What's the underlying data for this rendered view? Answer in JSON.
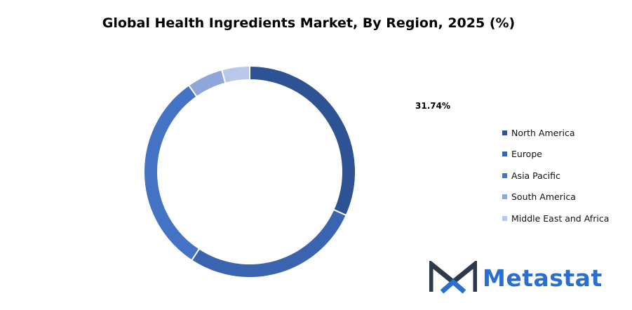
{
  "chart_data": {
    "type": "pie",
    "donut": true,
    "title": "Global Health Ingredients Market, By Region, 2025 (%)",
    "categories": [
      "North America",
      "Europe",
      "Asia Pacific",
      "South America",
      "Middle East and Africa"
    ],
    "values": [
      31.74,
      27.5,
      31.0,
      5.5,
      4.26
    ],
    "colors": [
      "#2e5394",
      "#3a64b0",
      "#4472c4",
      "#8ea6d9",
      "#b9c7e8"
    ],
    "data_labels": [
      "31.74%"
    ],
    "legend_position": "right"
  },
  "brand": {
    "name": "Metastat",
    "mark_color": "#2d3a4b",
    "accent_color": "#2a6fd0"
  }
}
